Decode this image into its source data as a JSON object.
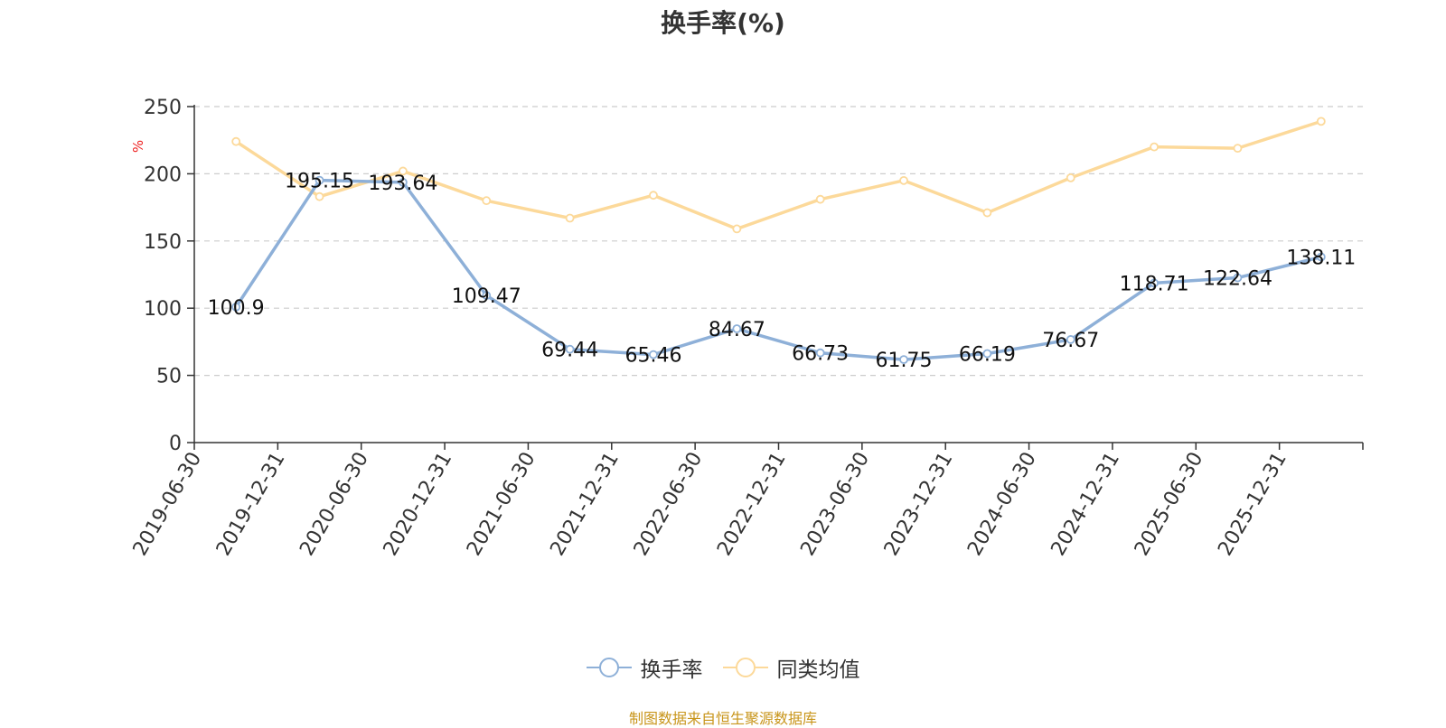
{
  "chart_data": {
    "type": "line",
    "title": "换手率(%)",
    "ylabel": "%",
    "ylim": [
      0,
      250
    ],
    "yticks": [
      0,
      50,
      100,
      150,
      200,
      250
    ],
    "grid": true,
    "legend_position": "bottom",
    "categories": [
      "2019-06-30",
      "2019-12-31",
      "2020-06-30",
      "2020-12-31",
      "2021-06-30",
      "2021-12-31",
      "2022-06-30",
      "2022-12-31",
      "2023-06-30",
      "2023-12-31",
      "2024-06-30",
      "2024-12-31",
      "2025-06-30",
      "2025-12-31"
    ],
    "series": [
      {
        "name": "换手率",
        "color": "#8eb0d8",
        "show_labels": true,
        "values": [
          100.9,
          195.15,
          193.64,
          109.47,
          69.44,
          65.46,
          84.67,
          66.73,
          61.75,
          66.19,
          76.67,
          118.71,
          122.64,
          138.11
        ]
      },
      {
        "name": "同类均值",
        "color": "#fcd99a",
        "show_labels": false,
        "values": [
          224,
          183,
          202,
          180,
          167,
          184,
          159,
          181,
          195,
          171,
          197,
          220,
          219,
          239
        ]
      }
    ]
  },
  "footer": "制图数据来自恒生聚源数据库"
}
